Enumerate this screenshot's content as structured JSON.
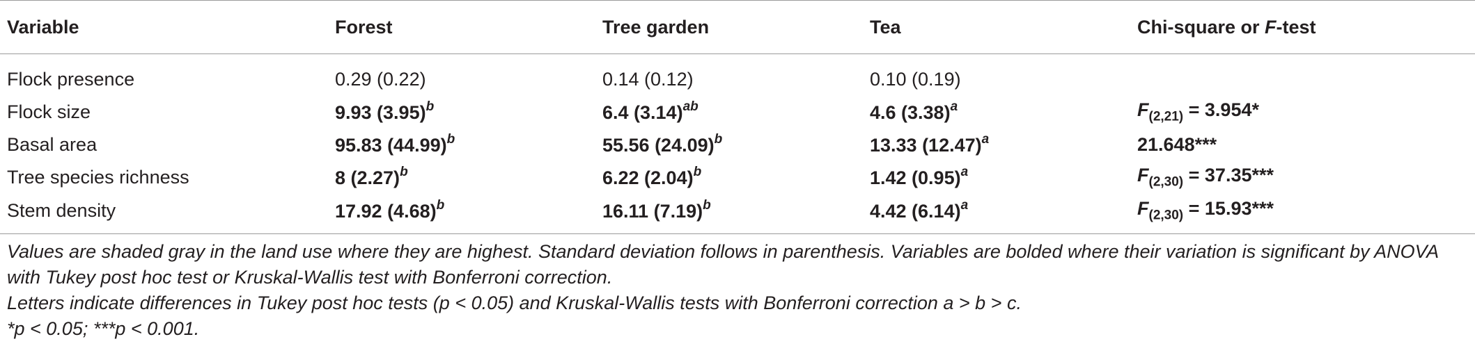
{
  "table": {
    "headers": [
      "Variable",
      "Forest",
      "Tree garden",
      "Tea",
      "Chi-square or F-test"
    ],
    "rows": [
      {
        "variable": "Flock presence",
        "bold": false,
        "forest": {
          "value": "0.29 (0.22)",
          "sup": ""
        },
        "tree_garden": {
          "value": "0.14 (0.12)",
          "sup": ""
        },
        "tea": {
          "value": "0.10 (0.19)",
          "sup": ""
        },
        "test": {
          "stat": "",
          "df": "",
          "value": ""
        }
      },
      {
        "variable": "Flock size",
        "bold": true,
        "forest": {
          "value": "9.93 (3.95)",
          "sup": "b"
        },
        "tree_garden": {
          "value": "6.4 (3.14)",
          "sup": "ab"
        },
        "tea": {
          "value": "4.6 (3.38)",
          "sup": "a"
        },
        "test": {
          "stat": "F",
          "df": "(2,21)",
          "value": " = 3.954*"
        }
      },
      {
        "variable": "Basal area",
        "bold": true,
        "forest": {
          "value": "95.83 (44.99)",
          "sup": "b"
        },
        "tree_garden": {
          "value": "55.56 (24.09)",
          "sup": "b"
        },
        "tea": {
          "value": "13.33 (12.47)",
          "sup": "a"
        },
        "test": {
          "stat": "",
          "df": "",
          "value": "21.648***"
        }
      },
      {
        "variable": "Tree species richness",
        "bold": true,
        "forest": {
          "value": "8 (2.27)",
          "sup": "b"
        },
        "tree_garden": {
          "value": "6.22 (2.04)",
          "sup": "b"
        },
        "tea": {
          "value": "1.42 (0.95)",
          "sup": "a"
        },
        "test": {
          "stat": "F",
          "df": "(2,30)",
          "value": " = 37.35***"
        }
      },
      {
        "variable": "Stem density",
        "bold": true,
        "forest": {
          "value": "17.92 (4.68)",
          "sup": "b"
        },
        "tree_garden": {
          "value": "16.11 (7.19)",
          "sup": "b"
        },
        "tea": {
          "value": "4.42 (6.14)",
          "sup": "a"
        },
        "test": {
          "stat": "F",
          "df": "(2,30)",
          "value": " = 15.93***"
        }
      }
    ]
  },
  "notes": [
    "Values are shaded gray in the land use where they are highest. Standard deviation follows in parenthesis. Variables are bolded where their variation is significant by ANOVA with Tukey post hoc test or Kruskal-Wallis test with Bonferroni correction.",
    "Letters indicate differences in Tukey post hoc tests (p < 0.05) and Kruskal-Wallis tests with Bonferroni correction a > b > c.",
    "*p < 0.05; ***p < 0.001."
  ]
}
